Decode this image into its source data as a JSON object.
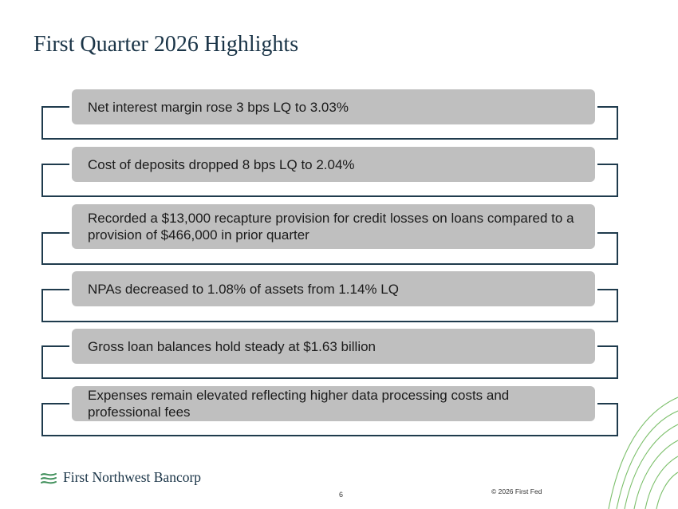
{
  "title": "First Quarter 2026 Highlights",
  "highlights": [
    "Net interest margin rose 3 bps LQ to 3.03%",
    "Cost of deposits dropped 8 bps LQ to 2.04%",
    "Recorded a $13,000 recapture provision for credit losses on loans compared to a provision of $466,000 in prior quarter",
    "NPAs decreased to 1.08% of assets from 1.14% LQ",
    "Gross loan balances hold steady at $1.63 billion",
    "Expenses remain elevated reflecting higher data processing costs and professional fees"
  ],
  "footer": {
    "logo_text": "First Northwest Bancorp",
    "page_number": "6",
    "copyright": "© 2026 First Fed"
  },
  "colors": {
    "title": "#1a3447",
    "frame": "#1f3b4d",
    "bar": "#bfbfbf",
    "accent_green": "#6aa84f"
  }
}
